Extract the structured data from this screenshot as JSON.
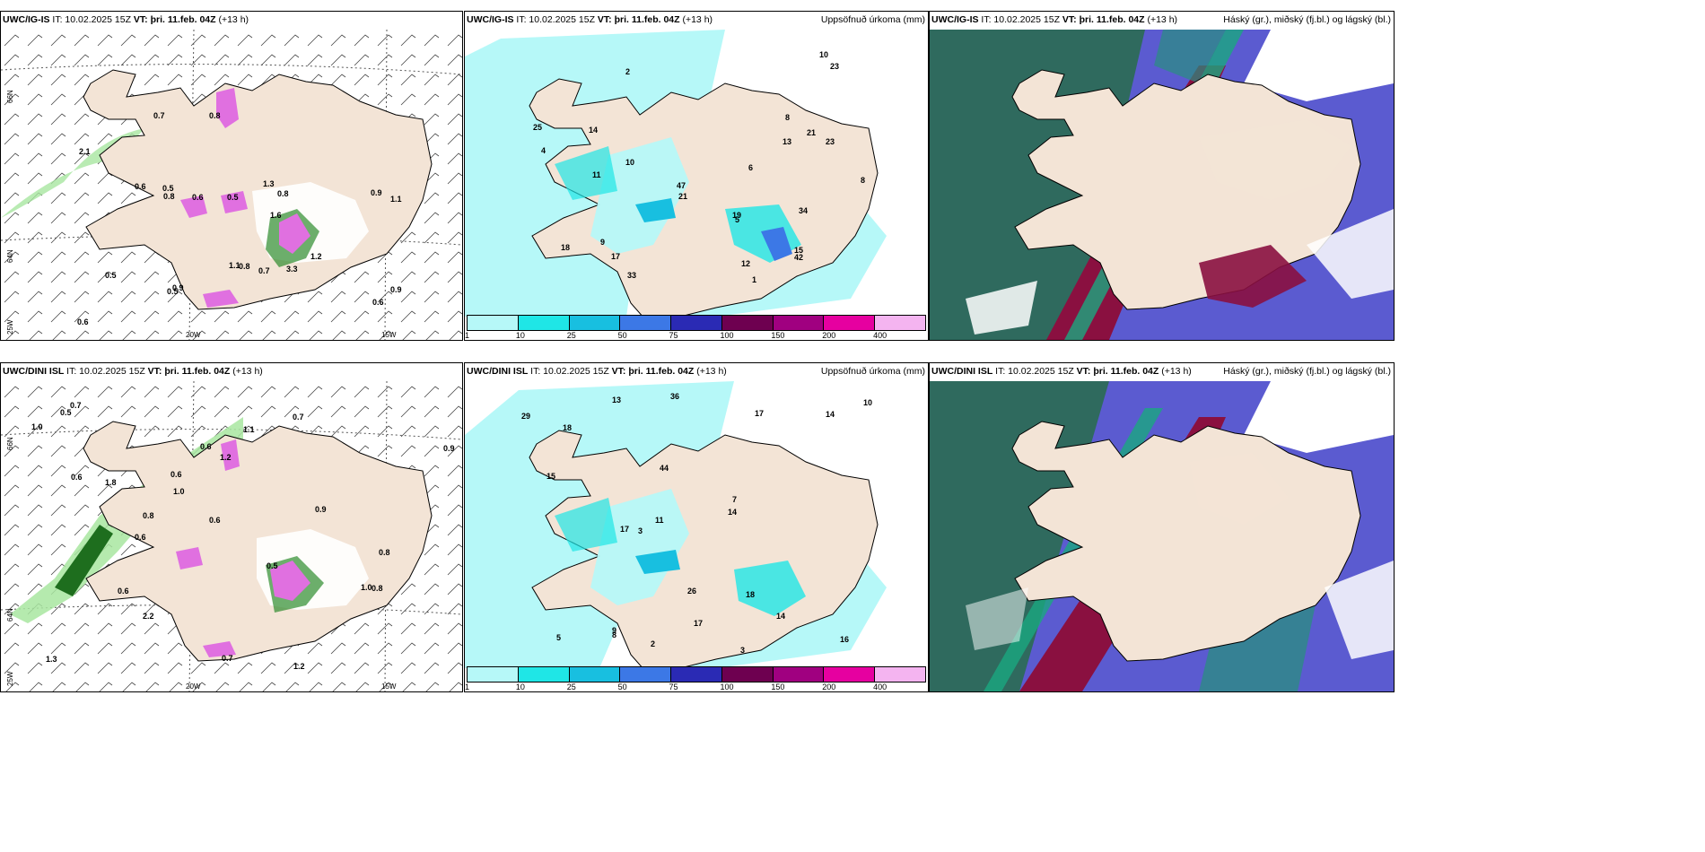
{
  "panels": [
    {
      "model": "UWC/IG-IS",
      "it": "IT: 10.02.2025 15Z",
      "vtlab": "VT:",
      "vt": "þri. 11.feb. 04Z",
      "off": "(+13 h)",
      "right": ""
    },
    {
      "model": "UWC/IG-IS",
      "it": "IT: 10.02.2025 15Z",
      "vtlab": "VT:",
      "vt": "þri. 11.feb. 04Z",
      "off": "(+13 h)",
      "right": "Uppsöfnuð úrkoma (mm)"
    },
    {
      "model": "UWC/IG-IS",
      "it": "IT: 10.02.2025 15Z",
      "vtlab": "VT:",
      "vt": "þri. 11.feb. 04Z",
      "off": "(+13 h)",
      "right": "Háský (gr.), miðský (fj.bl.) og lágský (bl.)"
    },
    {
      "model": "UWC/DINI ISL",
      "it": "IT: 10.02.2025 15Z",
      "vtlab": "VT:",
      "vt": "þri. 11.feb. 04Z",
      "off": "(+13 h)",
      "right": ""
    },
    {
      "model": "UWC/DINI ISL",
      "it": "IT: 10.02.2025 15Z",
      "vtlab": "VT:",
      "vt": "þri. 11.feb. 04Z",
      "off": "(+13 h)",
      "right": "Uppsöfnuð úrkoma (mm)"
    },
    {
      "model": "UWC/DINI ISL",
      "it": "IT: 10.02.2025 15Z",
      "vtlab": "VT:",
      "vt": "þri. 11.feb. 04Z",
      "off": "(+13 h)",
      "right": "Háský (gr.), miðský (fj.bl.) og lágský (bl.)"
    }
  ],
  "grid_labels": {
    "lat66": "66N",
    "lat64": "64N",
    "lat25w": "25W",
    "lon20w": "20W",
    "lon15w": "15W"
  },
  "legend": {
    "colors": [
      "#b6f8f8",
      "#1fe6e6",
      "#18bfe0",
      "#3c78e6",
      "#2a2ab4",
      "#6e0050",
      "#a00080",
      "#e600a0",
      "#f4b4f0"
    ],
    "ticks": [
      "1",
      "10",
      "25",
      "50",
      "75",
      "100",
      "150",
      "200",
      "400"
    ]
  },
  "precip_top": [
    "1",
    "2",
    "9",
    "14",
    "21",
    "12",
    "8",
    "10",
    "21",
    "17",
    "18",
    "25",
    "47",
    "19",
    "13",
    "10",
    "4",
    "23",
    "34",
    "23",
    "15",
    "5",
    "33",
    "42",
    "6",
    "8",
    "11"
  ],
  "precip_bottom": [
    "2",
    "3",
    "9",
    "14",
    "13",
    "18",
    "17",
    "16",
    "36",
    "44",
    "14",
    "17",
    "11",
    "26",
    "17",
    "14",
    "15",
    "8",
    "3",
    "29",
    "18",
    "10",
    "7",
    "5"
  ],
  "wind_top": [
    "0.6",
    "0.9",
    "0.7",
    "0.6",
    "1.2",
    "0.8",
    "1.6",
    "0.5",
    "0.6",
    "0.8",
    "1.3",
    "1.1",
    "0.8",
    "0.9",
    "0.7",
    "0.5",
    "2.1",
    "3.3",
    "0.9",
    "0.5",
    "1.1",
    "0.5",
    "0.6",
    "0.8"
  ],
  "wind_bottom": [
    "1.1",
    "0.5",
    "1.0",
    "0.8",
    "0.7",
    "1.2",
    "0.6",
    "0.9",
    "0.6",
    "1.0",
    "1.3",
    "0.8",
    "1.8",
    "0.5",
    "0.6",
    "0.8",
    "0.7",
    "0.6",
    "0.9",
    "1.2",
    "0.6",
    "1.0",
    "0.7",
    "0.6",
    "2.2"
  ]
}
